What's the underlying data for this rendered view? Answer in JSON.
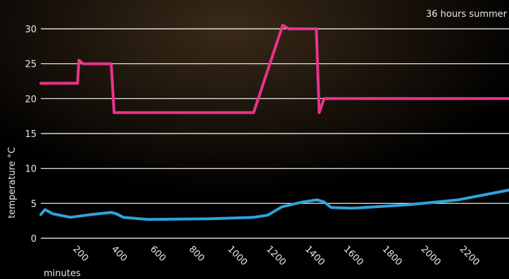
{
  "chart_data": {
    "type": "line",
    "title": "36 hours summer",
    "ylabel": "temperature  °C",
    "xlabel": "minutes",
    "xlim": [
      0,
      2420
    ],
    "ylim": [
      0,
      30
    ],
    "xticks": [
      200,
      400,
      600,
      800,
      1000,
      1200,
      1400,
      1600,
      1800,
      2000,
      2200
    ],
    "yticks": [
      0,
      5,
      10,
      15,
      20,
      25,
      30
    ],
    "grid": true,
    "series": [
      {
        "color": "#e8338a",
        "x": [
          0,
          190,
          197,
          219,
          364,
          379,
          1100,
          1250,
          1282,
          1424,
          1439,
          1464,
          2420
        ],
        "values": [
          22.2,
          22.2,
          25.5,
          25,
          25,
          18,
          18,
          30.5,
          30,
          30,
          18,
          20,
          20
        ]
      },
      {
        "color": "#2ea3dc",
        "x": [
          0,
          22,
          62,
          153,
          262,
          364,
          390,
          426,
          554,
          882,
          1100,
          1173,
          1246,
          1355,
          1428,
          1464,
          1501,
          1610,
          1902,
          2157,
          2420
        ],
        "values": [
          3.4,
          4.1,
          3.5,
          3.0,
          3.4,
          3.7,
          3.5,
          3.0,
          2.7,
          2.8,
          3.0,
          3.3,
          4.5,
          5.2,
          5.5,
          5.2,
          4.4,
          4.3,
          4.8,
          5.5,
          6.9
        ]
      }
    ]
  }
}
